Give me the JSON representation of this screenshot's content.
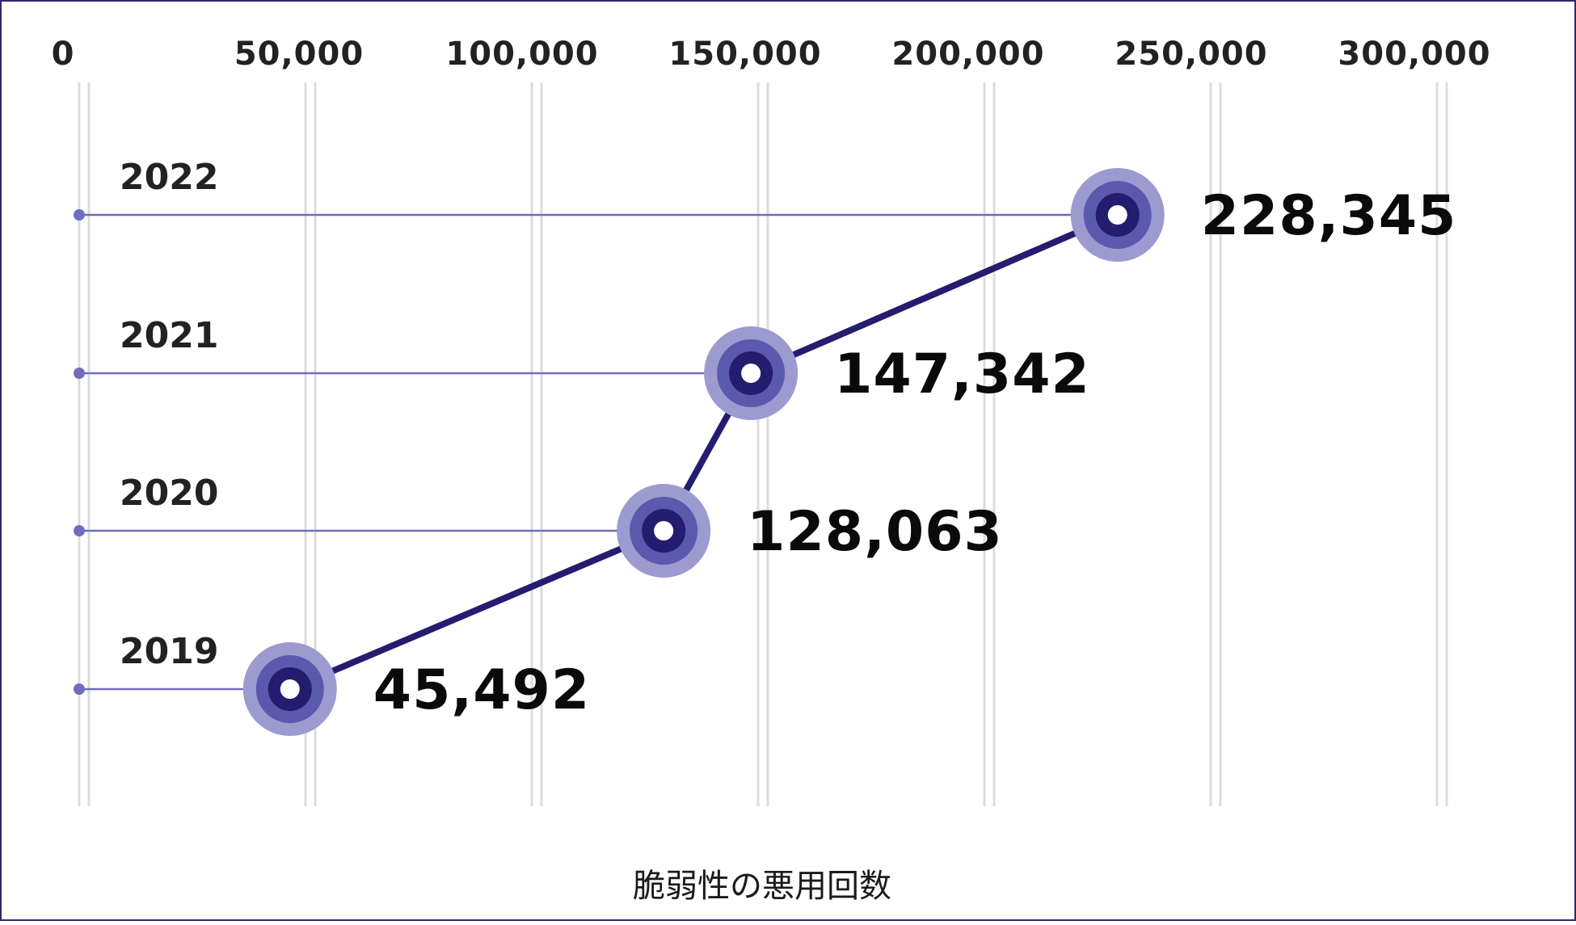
{
  "chart_data": {
    "type": "line",
    "title": "",
    "xlabel": "脆弱性の悪用回数",
    "ylabel": "",
    "x_ticks": [
      "0",
      "50,000",
      "100,000",
      "150,000",
      "200,000",
      "250,000",
      "300,000"
    ],
    "xlim": [
      0,
      300000
    ],
    "categories": [
      "2019",
      "2020",
      "2021",
      "2022"
    ],
    "series": [
      {
        "values": [
          45492,
          128063,
          147342,
          228345
        ],
        "value_labels": [
          "45,492",
          "128,063",
          "147,342",
          "228,345"
        ]
      }
    ],
    "grid": true,
    "orientation": "horizontal",
    "colors": {
      "line": "#241c6e",
      "marker_outer": "#9c9bd0",
      "marker_mid": "#5b59ad",
      "marker_inner": "#241c6e",
      "guide_line": "#6e6dbf",
      "grid": "#dcdcdc",
      "frame": "#2e2a6b"
    }
  }
}
